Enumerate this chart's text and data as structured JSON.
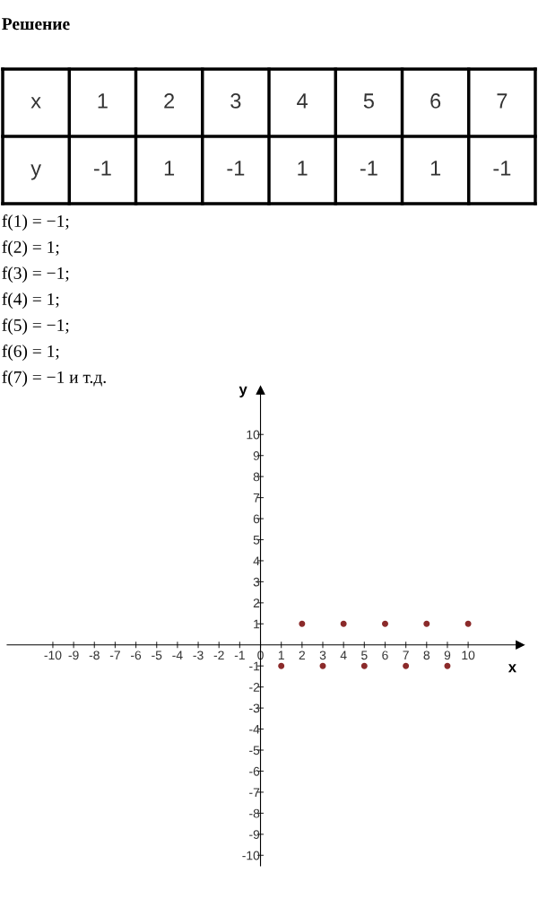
{
  "chart_data": {
    "type": "scatter",
    "title": "Решение",
    "annotations": [
      "x",
      "1",
      "2",
      "3",
      "4",
      "5",
      "6",
      "7",
      "y",
      "-1",
      "1",
      "-1",
      "1",
      "-1",
      "1",
      "-1",
      "f(1) = −1;",
      "f(2) = 1;",
      "f(3) = −1;",
      "f(4) = 1;",
      "f(5) = −1;",
      "f(6) = 1;",
      "f(7) = −1 и т.д."
    ],
    "x": [
      1,
      2,
      3,
      4,
      5,
      6,
      7,
      8,
      9,
      10
    ],
    "series": [
      {
        "color": "#8b2a2a",
        "values": [
          -1,
          1,
          -1,
          1,
          -1,
          1,
          -1,
          1,
          -1,
          1
        ]
      }
    ],
    "xlabel": "x",
    "ylabel": "y",
    "xlim": [
      -12.2,
      12.5
    ],
    "ylim": [
      -10.5,
      12.1
    ],
    "xticks": [
      -10,
      -9,
      -8,
      -7,
      -6,
      -5,
      -4,
      -3,
      -2,
      -1,
      0,
      1,
      2,
      3,
      4,
      5,
      6,
      7,
      8,
      9,
      10
    ],
    "yticks": [
      -10,
      -9,
      -8,
      -7,
      -6,
      -5,
      -4,
      -3,
      -2,
      -1,
      1,
      2,
      3,
      4,
      5,
      6,
      7,
      8,
      9,
      10
    ],
    "marker": "circle",
    "grid": false,
    "legend": false
  }
}
